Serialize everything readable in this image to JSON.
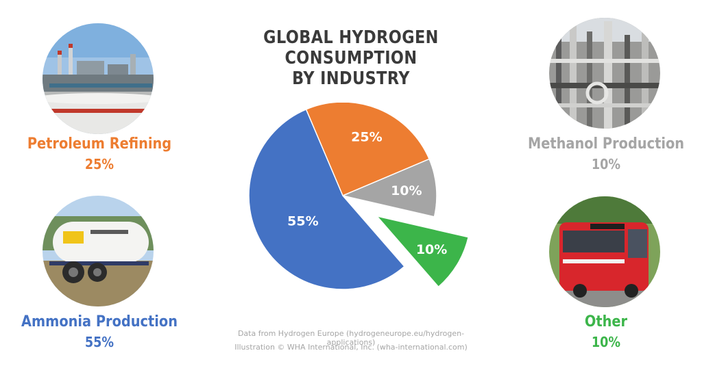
{
  "title_line1": "GLOBAL HYDROGEN CONSUMPTION",
  "title_line2": "BY INDUSTRY",
  "colors": {
    "ammonia": "#4472c4",
    "petroleum": "#ed7d31",
    "methanol": "#a5a5a5",
    "other": "#3cb54a"
  },
  "categories": {
    "petroleum": {
      "name": "Petroleum Refining",
      "pct": "25%"
    },
    "ammonia": {
      "name": "Ammonia Production",
      "pct": "55%"
    },
    "methanol": {
      "name": "Methanol Production",
      "pct": "10%"
    },
    "other": {
      "name": "Other",
      "pct": "10%"
    }
  },
  "chart_data": {
    "type": "pie",
    "title": "GLOBAL HYDROGEN CONSUMPTION BY INDUSTRY",
    "categories": [
      "Ammonia Production",
      "Petroleum Refining",
      "Methanol Production",
      "Other"
    ],
    "values": [
      55,
      25,
      10,
      10
    ],
    "labels": [
      "55%",
      "25%",
      "10%",
      "10%"
    ],
    "colors": [
      "#4472c4",
      "#ed7d31",
      "#a5a5a5",
      "#3cb54a"
    ],
    "exploded": [
      "Other"
    ]
  },
  "credits": {
    "line1": "Data from Hydrogen Europe (hydrogeneurope.eu/hydrogen-applications)",
    "line2": "Illustration © WHA International, Inc. (wha-international.com)"
  }
}
